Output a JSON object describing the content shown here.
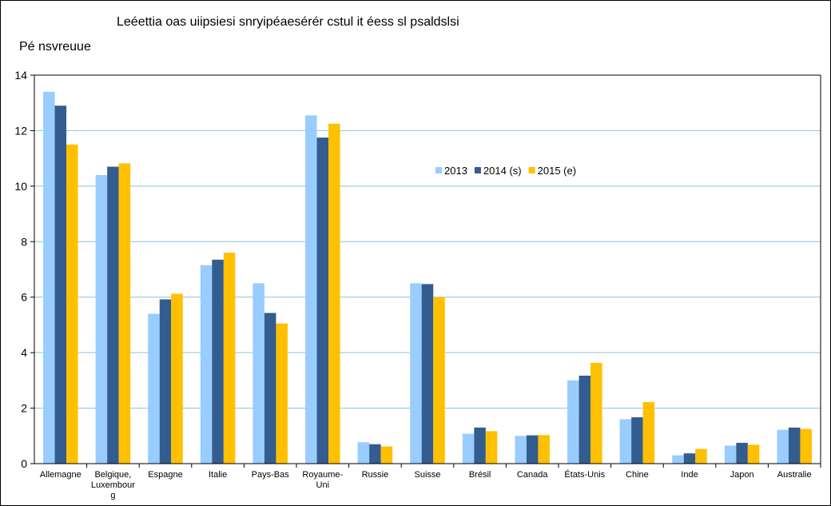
{
  "chart_data": {
    "type": "bar",
    "title": "Leéettia oas uiipsiesi snryipéaesérér cstul it éess sl psaldslsi",
    "ylabel": "Pé nsvreuue",
    "xlabel": "",
    "ylim": [
      0,
      14
    ],
    "yticks": [
      "0",
      "2",
      "4",
      "6",
      "8",
      "10",
      "12",
      "14"
    ],
    "grid": true,
    "legend_position": "center-right",
    "categories": [
      [
        "Allemagne"
      ],
      [
        "Belgique,",
        "Luxembour",
        "g"
      ],
      [
        "Espagne"
      ],
      [
        "Italie"
      ],
      [
        "Pays-Bas"
      ],
      [
        "Royaume-",
        "Uni"
      ],
      [
        "Russie"
      ],
      [
        "Suisse"
      ],
      [
        "Brésil"
      ],
      [
        "Canada"
      ],
      [
        "États-Unis"
      ],
      [
        "Chine"
      ],
      [
        "Inde"
      ],
      [
        "Japon"
      ],
      [
        "Australie"
      ]
    ],
    "series": [
      {
        "name": "2013",
        "color": "#99CCFF",
        "values": [
          13.4,
          10.4,
          5.4,
          7.15,
          6.5,
          12.55,
          0.77,
          6.5,
          1.08,
          1.0,
          3.0,
          1.6,
          0.3,
          0.65,
          1.22
        ]
      },
      {
        "name": "2014 (s)",
        "color": "#335C8F",
        "values": [
          12.9,
          10.7,
          5.92,
          7.35,
          5.43,
          11.75,
          0.7,
          6.47,
          1.3,
          1.02,
          3.17,
          1.67,
          0.37,
          0.75,
          1.3
        ]
      },
      {
        "name": "2015 (e)",
        "color": "#FFC000",
        "values": [
          11.5,
          10.82,
          6.12,
          7.6,
          5.05,
          12.25,
          0.62,
          6.0,
          1.17,
          1.03,
          3.63,
          2.22,
          0.53,
          0.68,
          1.25
        ]
      }
    ]
  }
}
